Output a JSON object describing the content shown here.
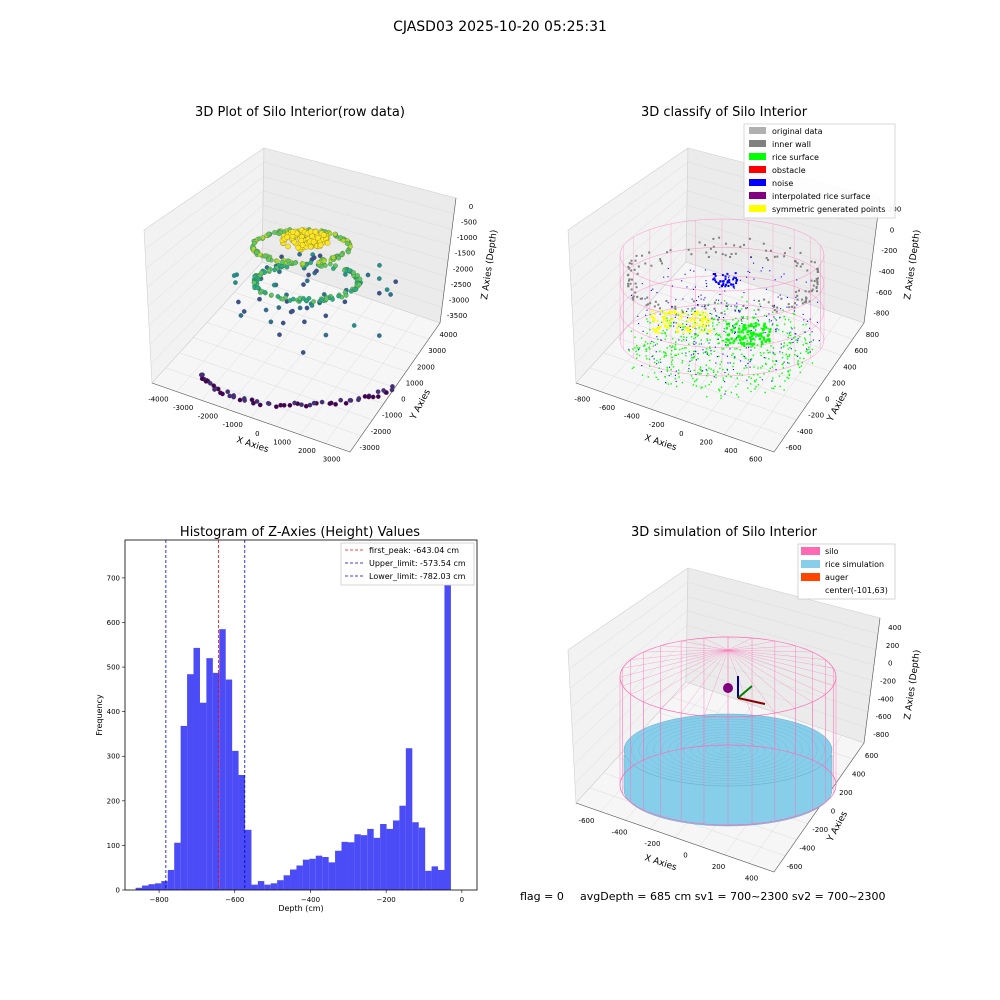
{
  "suptitle": "CJASD03 2025-10-20 05:25:31",
  "footer": {
    "flag": "flag = 0",
    "stats": "avgDepth = 685 cm  sv1 = 700~2300  sv2 = 700~2300"
  },
  "colors": {
    "hist_bar": "#4c4cf7",
    "first_peak": "#ff0000",
    "limits": "#0000cc",
    "silo": "#ff69b4",
    "rice_simulation": "#87ceeb",
    "auger": "#ff4500",
    "original_data": "#b0b0b0",
    "inner_wall": "#808080",
    "rice_surface": "#00ff00",
    "obstacle": "#ff0000",
    "noise": "#0000ff",
    "interpolated_rice_surface": "#800080",
    "symmetric_generated_points": "#ffff00"
  },
  "chart_data": [
    {
      "type": "scatter",
      "projection": "3d",
      "title": "3D Plot of Silo Interior(row data)",
      "xlabel": "X Axies",
      "ylabel": "Y Axies",
      "zlabel": "Z Axies (Depth)",
      "xticks": [
        "-4000",
        "-3000",
        "-2000",
        "-1000",
        "0",
        "1000",
        "2000",
        "3000"
      ],
      "yticks": [
        "-3000",
        "-2000",
        "-1000",
        "0",
        "1000",
        "2000",
        "3000",
        "4000"
      ],
      "zticks": [
        "0",
        "-500",
        "-1000",
        "-1500",
        "-2000",
        "-2500",
        "-3000",
        "-3500"
      ],
      "colormap": "viridis",
      "grid": true
    },
    {
      "type": "scatter",
      "projection": "3d",
      "title": "3D classify of Silo Interior",
      "xlabel": "X Axies",
      "ylabel": "Y Axies",
      "zlabel": "Z Axies (Depth)",
      "xticks": [
        "-800",
        "-600",
        "-400",
        "-200",
        "0",
        "200",
        "400",
        "600"
      ],
      "yticks": [
        "-600",
        "-400",
        "-200",
        "0",
        "200",
        "400",
        "600",
        "800"
      ],
      "zticks": [
        "200",
        "0",
        "-200",
        "-400",
        "-600",
        "-800"
      ],
      "legend": [
        "original data",
        "inner wall",
        "rice surface",
        "obstacle",
        "noise",
        "interpolated rice surface",
        "symmetric generated points"
      ],
      "legend_loc": "upper right",
      "grid": true
    },
    {
      "type": "bar",
      "title": "Histogram of Z-Axies (Height) Values",
      "xlabel": "Depth (cm)",
      "ylabel": "Frequency",
      "xlim": [
        -890,
        40
      ],
      "ylim": [
        0,
        785
      ],
      "xticks": [
        -800,
        -600,
        -400,
        -200,
        0
      ],
      "yticks": [
        0,
        100,
        200,
        300,
        400,
        500,
        600,
        700
      ],
      "bin_width": 17.1,
      "bins": [
        [
          -862,
          5
        ],
        [
          -845,
          10
        ],
        [
          -828,
          13
        ],
        [
          -811,
          15
        ],
        [
          -794,
          20
        ],
        [
          -777,
          45
        ],
        [
          -760,
          106
        ],
        [
          -743,
          368
        ],
        [
          -726,
          484
        ],
        [
          -709,
          543
        ],
        [
          -692,
          420
        ],
        [
          -675,
          520
        ],
        [
          -658,
          487
        ],
        [
          -641,
          585
        ],
        [
          -624,
          472
        ],
        [
          -607,
          312
        ],
        [
          -590,
          258
        ],
        [
          -573,
          135
        ],
        [
          -556,
          12
        ],
        [
          -539,
          20
        ],
        [
          -522,
          12
        ],
        [
          -505,
          15
        ],
        [
          -488,
          22
        ],
        [
          -471,
          33
        ],
        [
          -454,
          46
        ],
        [
          -437,
          55
        ],
        [
          -420,
          68
        ],
        [
          -403,
          70
        ],
        [
          -386,
          77
        ],
        [
          -369,
          74
        ],
        [
          -352,
          62
        ],
        [
          -335,
          88
        ],
        [
          -318,
          108
        ],
        [
          -301,
          107
        ],
        [
          -284,
          125
        ],
        [
          -267,
          123
        ],
        [
          -250,
          137
        ],
        [
          -233,
          117
        ],
        [
          -216,
          148
        ],
        [
          -199,
          137
        ],
        [
          -182,
          156
        ],
        [
          -165,
          189
        ],
        [
          -148,
          318
        ],
        [
          -131,
          152
        ],
        [
          -114,
          140
        ],
        [
          -97,
          43
        ],
        [
          -80,
          53
        ],
        [
          -63,
          45
        ],
        [
          -46,
          748
        ]
      ],
      "vlines": [
        {
          "label": "first_peak: -643.04 cm",
          "x": -643.04,
          "color": "#ff0000"
        },
        {
          "label": "Upper_limit: -573.54 cm",
          "x": -573.54,
          "color": "#0000cc"
        },
        {
          "label": "Lower_limit: -782.03 cm",
          "x": -782.03,
          "color": "#0000cc"
        }
      ],
      "legend_loc": "upper right"
    },
    {
      "type": "surface",
      "projection": "3d",
      "title": "3D simulation of Silo Interior",
      "xlabel": "X Axies",
      "ylabel": "Y Axies",
      "zlabel": "Z Axies (Depth)",
      "xticks": [
        "-600",
        "-400",
        "-200",
        "0",
        "200",
        "400"
      ],
      "yticks": [
        "-600",
        "-400",
        "-200",
        "0",
        "200",
        "400",
        "600"
      ],
      "zticks": [
        "400",
        "200",
        "0",
        "-200",
        "-400",
        "-600",
        "-800"
      ],
      "legend": [
        "silo",
        "rice simulation",
        "auger",
        "center(-101,63)"
      ],
      "legend_loc": "upper right",
      "grid": true
    }
  ]
}
